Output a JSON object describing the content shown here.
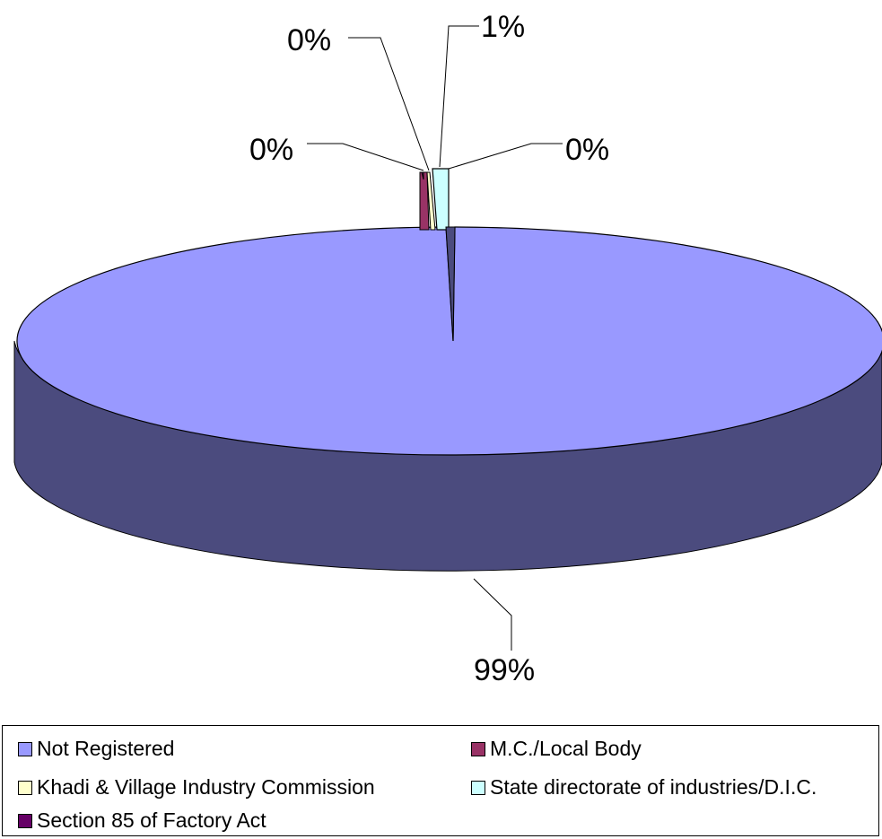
{
  "chart_data": {
    "type": "pie",
    "style": "3d-exploded",
    "title": "",
    "series": [
      {
        "name": "Not Registered",
        "value": 99,
        "label": "99%",
        "color": "#9999ff",
        "side_color": "#4b4b7e"
      },
      {
        "name": "M.C./Local Body",
        "value": 0.3,
        "label": "0%",
        "color": "#993366",
        "side_color": "#4d1a33"
      },
      {
        "name": "Khadi & Village Industry Commission",
        "value": 0.2,
        "label": "0%",
        "color": "#ffffcc",
        "side_color": "#b3b38f"
      },
      {
        "name": "State directorate of industries/D.I.C.",
        "value": 0.5,
        "label": "1%",
        "color": "#ccffff",
        "side_color": "#80b3b3"
      },
      {
        "name": "Section 85 of Factory Act",
        "value": 0.0,
        "label": "0%",
        "color": "#660066",
        "side_color": "#330033"
      }
    ],
    "legend_position": "bottom"
  }
}
